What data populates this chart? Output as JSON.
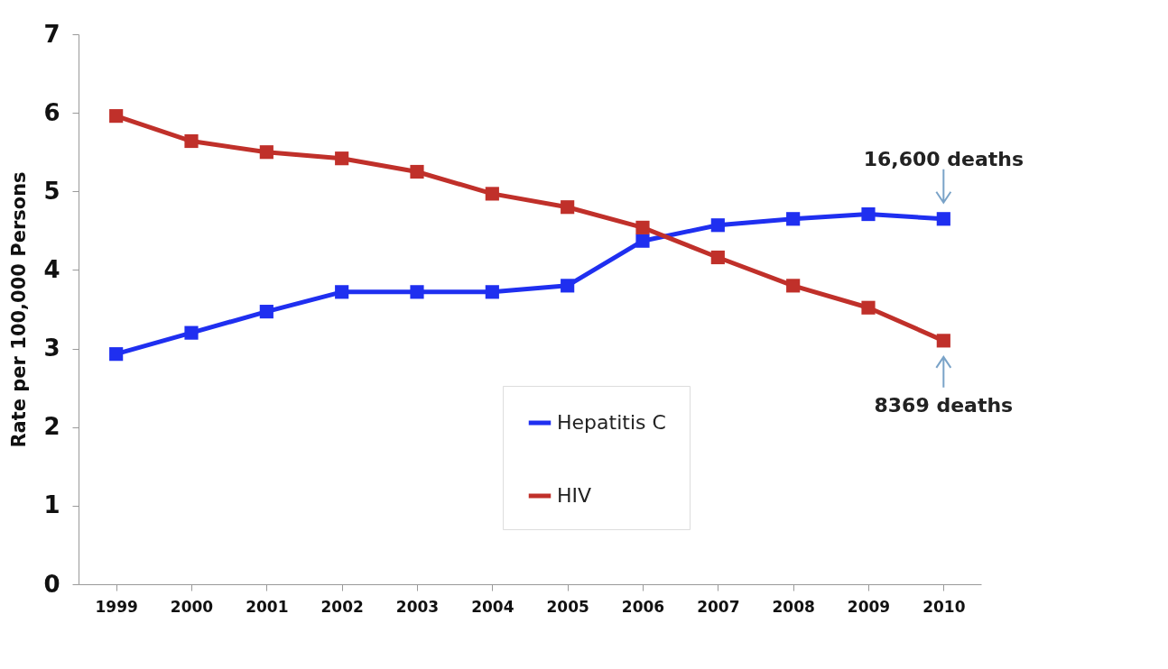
{
  "chart_data": {
    "type": "line",
    "ylabel": "Rate per 100,000 Persons",
    "categories": [
      "1999",
      "2000",
      "2001",
      "2002",
      "2003",
      "2004",
      "2005",
      "2006",
      "2007",
      "2008",
      "2009",
      "2010"
    ],
    "series": [
      {
        "name": "Hepatitis C",
        "color": "#1f2ff0",
        "values": [
          2.93,
          3.2,
          3.47,
          3.72,
          3.72,
          3.72,
          3.8,
          4.37,
          4.57,
          4.65,
          4.71,
          4.65
        ]
      },
      {
        "name": "HIV",
        "color": "#c0302a",
        "values": [
          5.96,
          5.64,
          5.5,
          5.42,
          5.25,
          4.97,
          4.8,
          4.54,
          4.16,
          3.8,
          3.52,
          3.1
        ]
      }
    ],
    "ylim": [
      0,
      7
    ],
    "yticks": [
      0,
      1,
      2,
      3,
      4,
      5,
      6,
      7
    ],
    "annotations": [
      {
        "text": "16,600 deaths",
        "x": "2010",
        "y": 4.65
      },
      {
        "text": "8369 deaths",
        "x": "2010",
        "y": 3.1
      }
    ],
    "grid": false,
    "legend": "bottom",
    "marker": "square",
    "line_style": "solid"
  }
}
